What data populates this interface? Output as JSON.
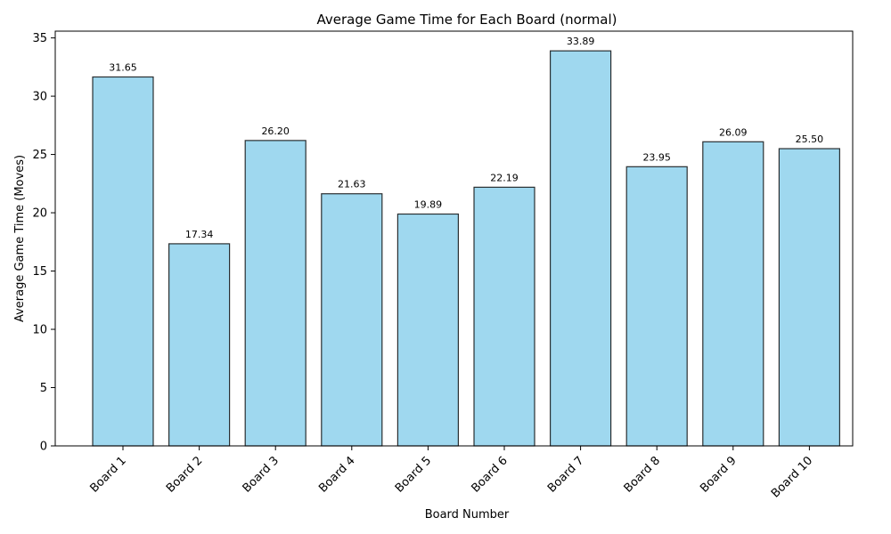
{
  "chart_data": {
    "type": "bar",
    "title": "Average Game Time for Each Board (normal)",
    "xlabel": "Board Number",
    "ylabel": "Average Game Time (Moves)",
    "categories": [
      "Board 1",
      "Board 2",
      "Board 3",
      "Board 4",
      "Board 5",
      "Board 6",
      "Board 7",
      "Board 8",
      "Board 9",
      "Board 10"
    ],
    "values": [
      31.65,
      17.34,
      26.2,
      21.63,
      19.89,
      22.19,
      33.89,
      23.95,
      26.09,
      25.5
    ],
    "data_labels": [
      "31.65",
      "17.34",
      "26.20",
      "21.63",
      "19.89",
      "22.19",
      "33.89",
      "23.95",
      "26.09",
      "25.50"
    ],
    "ylim": [
      0,
      35.58
    ],
    "yticks": [
      0,
      5,
      10,
      15,
      20,
      25,
      30,
      35
    ],
    "grid": false,
    "colors": {
      "bar_fill": "#87ceeb",
      "bar_opacity": 0.8,
      "bar_edge": "#000000"
    }
  }
}
